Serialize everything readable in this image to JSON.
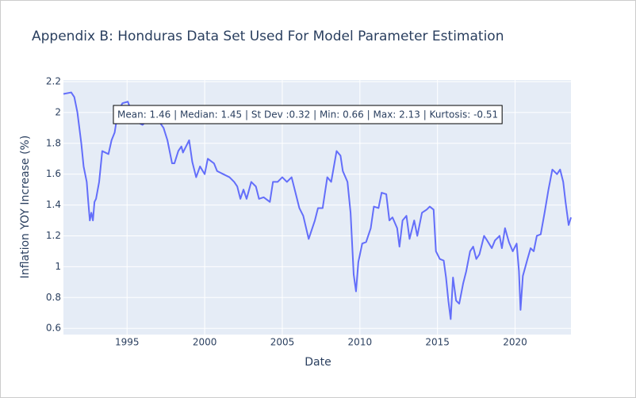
{
  "chart_data": {
    "type": "line",
    "title": "Appendix B: Honduras Data Set Used For Model Parameter Estimation",
    "x_label": "Date",
    "y_label": "Inflation YOY Increase (%)",
    "annotation": "Mean: 1.46 | Median: 1.45 | St Dev :0.32 | Min: 0.66 | Max: 2.13 | Kurtosis: -0.51",
    "color": "#636efa",
    "grid": true,
    "xlim": [
      1990.9,
      2023.6
    ],
    "xticks": [
      1995,
      2000,
      2005,
      2010,
      2015,
      2020
    ],
    "ylim": [
      0.56,
      2.21
    ],
    "yticks": [
      0.6,
      0.8,
      1,
      1.2,
      1.4,
      1.6,
      1.8,
      2,
      2.2
    ],
    "x": [
      1990.9,
      1991.4,
      1991.6,
      1991.8,
      1991.9,
      1992.05,
      1992.2,
      1992.4,
      1992.5,
      1992.6,
      1992.7,
      1992.8,
      1992.9,
      1993.0,
      1993.2,
      1993.4,
      1993.6,
      1993.8,
      1994.0,
      1994.2,
      1994.4,
      1994.7,
      1995.05,
      1995.3,
      1995.6,
      1996.0,
      1996.5,
      1997.0,
      1997.35,
      1997.6,
      1997.9,
      1998.05,
      1998.3,
      1998.5,
      1998.6,
      1999.0,
      1999.2,
      1999.45,
      1999.7,
      2000.0,
      2000.2,
      2000.6,
      2000.8,
      2001.2,
      2001.6,
      2001.9,
      2002.1,
      2002.3,
      2002.5,
      2002.7,
      2003.0,
      2003.3,
      2003.5,
      2003.8,
      2004.2,
      2004.4,
      2004.7,
      2005.0,
      2005.3,
      2005.6,
      2005.85,
      2006.1,
      2006.35,
      2006.7,
      2007.1,
      2007.3,
      2007.6,
      2007.9,
      2008.15,
      2008.5,
      2008.75,
      2008.9,
      2009.2,
      2009.4,
      2009.6,
      2009.75,
      2009.9,
      2010.15,
      2010.4,
      2010.7,
      2010.9,
      2011.2,
      2011.4,
      2011.7,
      2011.9,
      2012.1,
      2012.4,
      2012.55,
      2012.75,
      2013.0,
      2013.2,
      2013.5,
      2013.7,
      2014.0,
      2014.3,
      2014.5,
      2014.75,
      2014.9,
      2015.15,
      2015.4,
      2015.55,
      2015.7,
      2015.85,
      2016.0,
      2016.2,
      2016.4,
      2016.65,
      2016.85,
      2017.1,
      2017.3,
      2017.5,
      2017.7,
      2018.0,
      2018.2,
      2018.5,
      2018.7,
      2019.0,
      2019.15,
      2019.35,
      2019.6,
      2019.85,
      2020.1,
      2020.25,
      2020.35,
      2020.5,
      2020.8,
      2021.0,
      2021.2,
      2021.4,
      2021.65,
      2021.9,
      2022.15,
      2022.4,
      2022.7,
      2022.9,
      2023.1,
      2023.25,
      2023.45,
      2023.6
    ],
    "values": [
      2.12,
      2.13,
      2.1,
      2.0,
      1.92,
      1.8,
      1.65,
      1.55,
      1.42,
      1.3,
      1.35,
      1.3,
      1.42,
      1.44,
      1.55,
      1.75,
      1.74,
      1.73,
      1.82,
      1.87,
      2.0,
      2.06,
      2.07,
      2.0,
      1.94,
      1.92,
      1.97,
      1.95,
      1.9,
      1.82,
      1.67,
      1.67,
      1.75,
      1.78,
      1.74,
      1.82,
      1.68,
      1.58,
      1.65,
      1.6,
      1.7,
      1.67,
      1.62,
      1.6,
      1.58,
      1.55,
      1.52,
      1.44,
      1.5,
      1.44,
      1.55,
      1.52,
      1.44,
      1.45,
      1.42,
      1.55,
      1.55,
      1.58,
      1.55,
      1.58,
      1.48,
      1.38,
      1.33,
      1.18,
      1.3,
      1.38,
      1.38,
      1.58,
      1.55,
      1.75,
      1.72,
      1.62,
      1.55,
      1.35,
      0.95,
      0.84,
      1.03,
      1.15,
      1.16,
      1.25,
      1.39,
      1.38,
      1.48,
      1.47,
      1.3,
      1.32,
      1.25,
      1.13,
      1.3,
      1.33,
      1.18,
      1.3,
      1.2,
      1.35,
      1.37,
      1.39,
      1.37,
      1.1,
      1.05,
      1.04,
      0.93,
      0.78,
      0.66,
      0.93,
      0.78,
      0.76,
      0.89,
      0.97,
      1.1,
      1.13,
      1.05,
      1.08,
      1.2,
      1.17,
      1.12,
      1.17,
      1.2,
      1.12,
      1.25,
      1.16,
      1.1,
      1.15,
      0.97,
      0.72,
      0.94,
      1.05,
      1.12,
      1.1,
      1.2,
      1.21,
      1.35,
      1.5,
      1.63,
      1.6,
      1.63,
      1.55,
      1.42,
      1.27,
      1.32
    ]
  }
}
